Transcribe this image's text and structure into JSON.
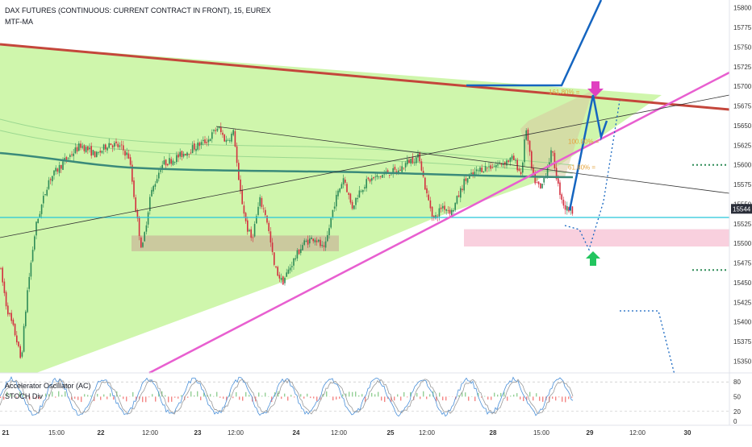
{
  "header": {
    "instrument": "DAX FUTURES (CONTINUOUS: CURRENT CONTRACT IN FRONT), 15, EUREX",
    "indicator": "MTF-MA"
  },
  "indicator_panel": {
    "label_1": "Accelerator Oscillator (AC)",
    "label_2": "STOCH Div"
  },
  "colors": {
    "triangle_fill": "#ccf5a8",
    "resistance": "#c4463b",
    "support": "#e85fd0",
    "projection": "#1565c0",
    "ma_line": "#3a8a7a",
    "horizontal": "#26c6da",
    "demand_zone": "#c9b99a",
    "target_zone": "#f8c8d8",
    "up_candle": "#2e8b57",
    "down_candle": "#d32f3f",
    "pink_arrow": "#e040c0",
    "green_arrow": "#22c55e"
  },
  "chart_data": [
    {
      "type": "candlestick",
      "title": "DAX FUTURES (CONTINUOUS: CURRENT CONTRACT IN FRONT), 15, EUREX",
      "xlabel": "",
      "ylabel": "",
      "x_ticks": [
        "21",
        "15:00",
        "22",
        "12:00",
        "23",
        "12:00",
        "24",
        "12:00",
        "25",
        "12:00",
        "28",
        "15:00",
        "29",
        "12:00",
        "30"
      ],
      "y_ticks": [
        15350,
        15375,
        15400,
        15425,
        15450,
        15475,
        15500,
        15525,
        15550,
        15575,
        15600,
        15625,
        15650,
        15675,
        15700,
        15725,
        15750,
        15775,
        15800
      ],
      "ylim": [
        15335,
        15810
      ],
      "current_price": 15544,
      "anchor_points": [
        [
          0,
          15470
        ],
        [
          8,
          15420
        ],
        [
          14,
          15400
        ],
        [
          20,
          15380
        ],
        [
          26,
          15350
        ],
        [
          34,
          15440
        ],
        [
          44,
          15520
        ],
        [
          60,
          15580
        ],
        [
          80,
          15605
        ],
        [
          100,
          15625
        ],
        [
          120,
          15612
        ],
        [
          135,
          15628
        ],
        [
          150,
          15622
        ],
        [
          160,
          15610
        ],
        [
          168,
          15545
        ],
        [
          176,
          15490
        ],
        [
          186,
          15560
        ],
        [
          200,
          15600
        ],
        [
          220,
          15610
        ],
        [
          240,
          15622
        ],
        [
          258,
          15632
        ],
        [
          270,
          15648
        ],
        [
          280,
          15630
        ],
        [
          290,
          15642
        ],
        [
          296,
          15575
        ],
        [
          306,
          15520
        ],
        [
          312,
          15505
        ],
        [
          322,
          15555
        ],
        [
          330,
          15535
        ],
        [
          340,
          15470
        ],
        [
          350,
          15450
        ],
        [
          362,
          15475
        ],
        [
          376,
          15500
        ],
        [
          390,
          15508
        ],
        [
          402,
          15490
        ],
        [
          414,
          15550
        ],
        [
          426,
          15585
        ],
        [
          436,
          15545
        ],
        [
          446,
          15568
        ],
        [
          456,
          15580
        ],
        [
          470,
          15585
        ],
        [
          480,
          15590
        ],
        [
          494,
          15592
        ],
        [
          506,
          15605
        ],
        [
          520,
          15610
        ],
        [
          528,
          15565
        ],
        [
          538,
          15530
        ],
        [
          548,
          15548
        ],
        [
          560,
          15540
        ],
        [
          576,
          15580
        ],
        [
          596,
          15595
        ],
        [
          616,
          15600
        ],
        [
          636,
          15608
        ],
        [
          646,
          15588
        ],
        [
          652,
          15648
        ],
        [
          660,
          15585
        ],
        [
          670,
          15568
        ],
        [
          684,
          15618
        ],
        [
          692,
          15572
        ],
        [
          700,
          15545
        ],
        [
          710,
          15542
        ]
      ],
      "annotations": {
        "fib_labels": [
          {
            "text": "161.80%",
            "price": 15693
          },
          {
            "text": "100.00%",
            "price": 15630
          },
          {
            "text": "61.80%",
            "price": 15597
          }
        ]
      }
    },
    {
      "type": "oscillator",
      "y_ticks": [
        0,
        20,
        50,
        80
      ],
      "ylim": [
        -5,
        95
      ]
    }
  ]
}
